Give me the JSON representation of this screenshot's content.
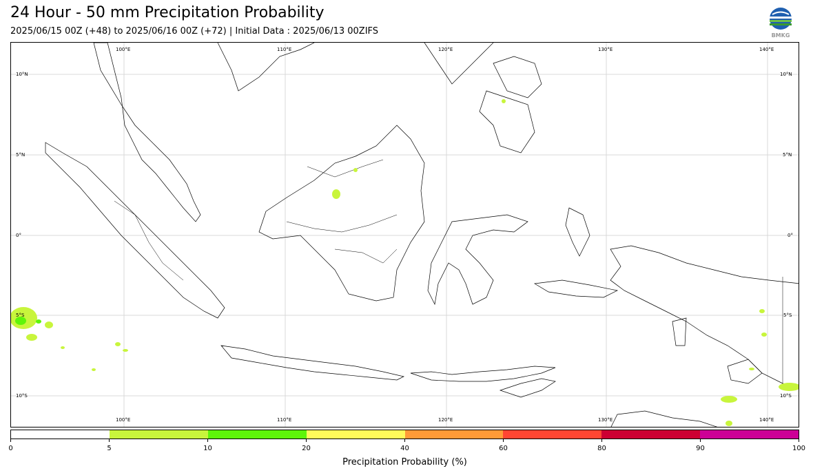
{
  "header": {
    "title": "24 Hour - 50 mm Precipitation Probability",
    "subtitle": "2025/06/15 00Z (+48) to 2025/06/16 00Z (+72) | Initial Data : 2025/06/13 00ZIFS"
  },
  "logo": {
    "icon": "bmkg-logo-icon",
    "text": "BMKG"
  },
  "map": {
    "lon_labels": [
      "100°E",
      "110°E",
      "120°E",
      "130°E",
      "140°E"
    ],
    "lat_labels": [
      "10°N",
      "5°N",
      "0°",
      "5°S",
      "10°S"
    ],
    "grid": true,
    "colors": {
      "coast": "#000000",
      "border": "#000000",
      "grid": "#d9d9d9"
    }
  },
  "colorbar": {
    "label": "Precipitation Probability (%)",
    "ticks": [
      "0",
      "5",
      "10",
      "20",
      "40",
      "60",
      "80",
      "90",
      "100"
    ],
    "colors": [
      "#ffffff",
      "#c8f53c",
      "#5ef50a",
      "#fffa5a",
      "#ff9b37",
      "#ff4632",
      "#cd0032",
      "#cd0096"
    ]
  }
}
